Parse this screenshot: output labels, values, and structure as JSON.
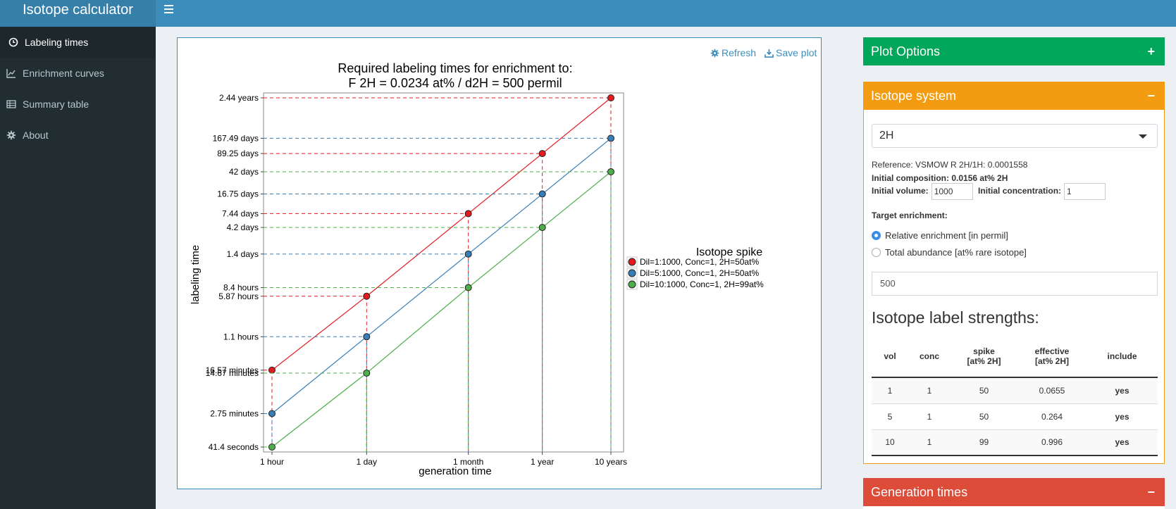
{
  "app": {
    "title": "Isotope calculator"
  },
  "sidebar": {
    "items": [
      {
        "label": "Labeling times",
        "icon": "clock-icon",
        "active": true
      },
      {
        "label": "Enrichment curves",
        "icon": "line-chart-icon",
        "active": false
      },
      {
        "label": "Summary table",
        "icon": "table-icon",
        "active": false
      },
      {
        "label": "About",
        "icon": "gear-icon",
        "active": false
      }
    ]
  },
  "plot": {
    "refresh_label": "Refresh",
    "save_label": "Save plot"
  },
  "chart_data": {
    "type": "line",
    "title": "Required labeling times for enrichment to:",
    "subtitle": "F 2H = 0.0234 at% / d2H = 500 permil",
    "xlabel": "generation time",
    "ylabel": "labeling time",
    "x_scale": "log",
    "y_scale": "log",
    "x_ticks": [
      "1 hour",
      "1 day",
      "1 month",
      "1 year",
      "10 years"
    ],
    "legend": {
      "title": "Isotope spike",
      "placement": "right"
    },
    "series": [
      {
        "name": "Dil=1:1000, Conc=1, 2H=50at%",
        "color": "#e41a1c",
        "labels": [
          "16.57 minutes",
          "5.87 hours",
          "7.44 days",
          "89.25 days",
          "2.44 years"
        ]
      },
      {
        "name": "Dil=5:1000, Conc=1, 2H=50at%",
        "color": "#377eb8",
        "labels": [
          "2.75 minutes",
          "1.1 hours",
          "1.4 days",
          "16.75 days",
          "167.49 days"
        ]
      },
      {
        "name": "Dil=10:1000, Conc=1, 2H=99at%",
        "color": "#4daf4a",
        "labels": [
          "41.4 seconds",
          "14.67 minutes",
          "8.4 hours",
          "4.2 days",
          "42 days"
        ]
      }
    ]
  },
  "options": {
    "title": "Plot Options",
    "tool": "+"
  },
  "isotope": {
    "title": "Isotope system",
    "tool": "−",
    "selected": "2H",
    "reference": "Reference: VSMOW R 2H/1H: 0.0001558",
    "initial_composition": "Initial composition: 0.0156 at% 2H",
    "initial_volume_label": "Initial volume:",
    "initial_volume": "1000",
    "initial_concentration_label": "Initial concentration:",
    "initial_concentration": "1",
    "target_label": "Target enrichment:",
    "radio_relative": "Relative enrichment [in permil]",
    "radio_total": "Total abundance [at% rare isotope]",
    "target_value": "500",
    "strengths_title": "Isotope label strengths:",
    "table": {
      "headers": [
        "vol",
        "conc",
        "spike",
        "[at% 2H]",
        "effective",
        "[at% 2H]",
        "include"
      ],
      "rows": [
        [
          "1",
          "1",
          "50",
          "0.0655",
          "yes"
        ],
        [
          "5",
          "1",
          "50",
          "0.264",
          "yes"
        ],
        [
          "10",
          "1",
          "99",
          "0.996",
          "yes"
        ]
      ]
    }
  },
  "generation": {
    "title": "Generation times",
    "tool": "−"
  }
}
